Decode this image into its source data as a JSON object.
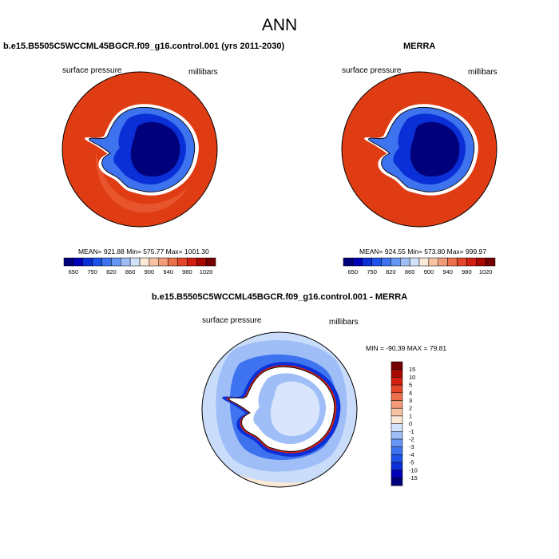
{
  "main_title": "ANN",
  "panels": {
    "model": {
      "title": "b.e15.B5505C5WCCML45BGCR.f09_g16.control.001 (yrs 2011-2030)",
      "left_label": "surface pressure",
      "right_label": "millibars",
      "stats": "MEAN= 921.88  Min= 575.77  Max= 1001.30"
    },
    "obs": {
      "title": "MERRA",
      "left_label": "surface pressure",
      "right_label": "millibars",
      "stats": "MEAN= 924.55  Min= 573.80  Max= 999.97"
    },
    "diff": {
      "title": "b.e15.B5505C5WCCML45BGCR.f09_g16.control.001 - MERRA",
      "left_label": "surface pressure",
      "right_label": "millibars",
      "stats": "MIN = -90.39 MAX =  79.81"
    }
  },
  "colorbar_abs": {
    "colors": [
      "#00007a",
      "#0000b8",
      "#0a2fd6",
      "#1f52e8",
      "#3d73ef",
      "#6696f4",
      "#9fbef8",
      "#d2e2fb",
      "#fbe9d8",
      "#f8c3a4",
      "#f29b76",
      "#eb704b",
      "#e4462b",
      "#d21f10",
      "#a80800",
      "#750000"
    ],
    "tick_labels": [
      "650",
      "750",
      "820",
      "860",
      "900",
      "940",
      "980",
      "1020"
    ]
  },
  "colorbar_diff": {
    "colors": [
      "#00007a",
      "#0000b8",
      "#0a2fd6",
      "#1f52e8",
      "#3d73ef",
      "#6696f4",
      "#9fbef8",
      "#d2e2fb",
      "#fbe9d8",
      "#f8c3a4",
      "#f29b76",
      "#eb704b",
      "#e4462b",
      "#d21f10",
      "#a80800",
      "#750000"
    ],
    "tick_labels": [
      "15",
      "10",
      "5",
      "4",
      "3",
      "2",
      "1",
      "0",
      "-1",
      "-2",
      "-3",
      "-4",
      "-5",
      "-10",
      "-15"
    ]
  },
  "map_colors": {
    "ocean_abs": "#e03c14",
    "ocean_abs_light": "#e8552c",
    "ice_outer": "#3d73ef",
    "ice_mid": "#0a2fd6",
    "ice_deep": "#00007a",
    "diff_bg": "#c9dcfa",
    "diff_light": "#9fbef8",
    "diff_mid": "#3d73ef",
    "diff_dark": "#0a2fd6",
    "diff_red": "#d21f10"
  }
}
